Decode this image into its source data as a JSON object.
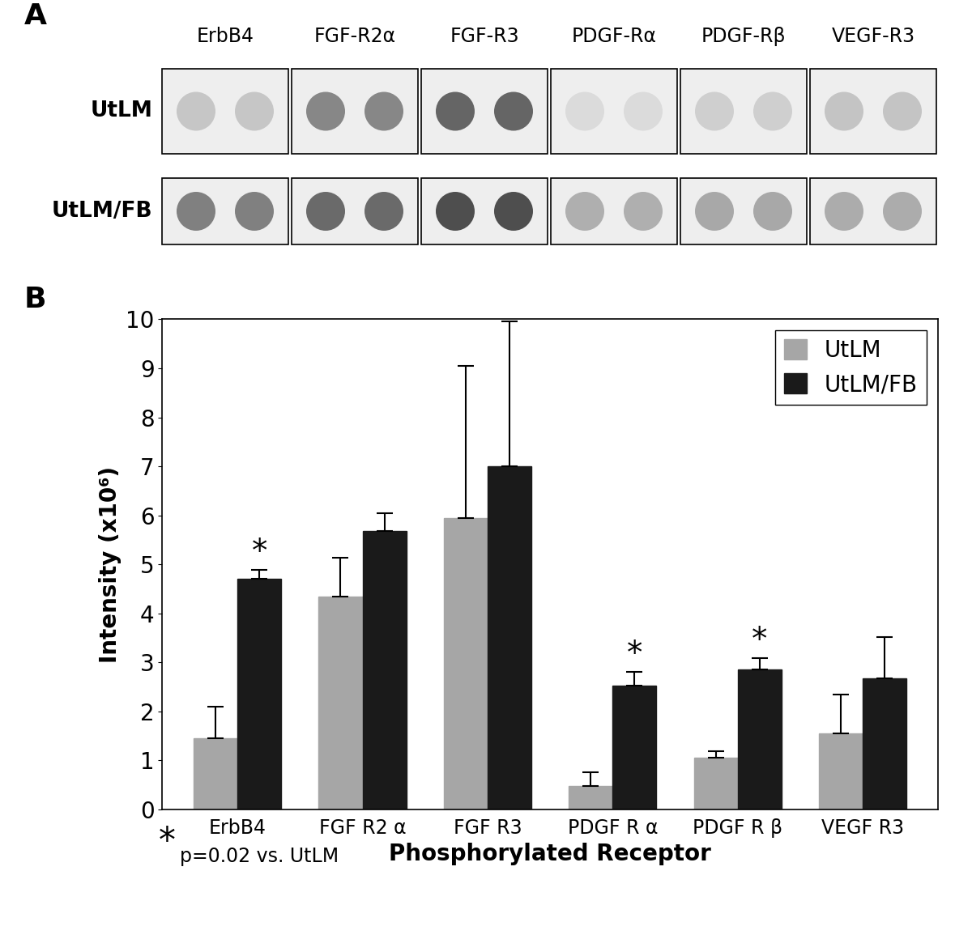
{
  "panel_a": {
    "label": "A",
    "columns": [
      "ErbB4",
      "FGF-R2α",
      "FGF-R3",
      "PDGF-Rα",
      "PDGF-Rβ",
      "VEGF-R3"
    ],
    "rows": [
      "UtLM",
      "UtLM/FB"
    ]
  },
  "chart_data": {
    "panel_label": "B",
    "type": "bar",
    "categories": [
      "ErbB4",
      "FGF R2 α",
      "FGF R3",
      "PDGF R α",
      "PDGF R β",
      "VEGF R3"
    ],
    "x_label": "Phosphorylated Receptor",
    "y_label": "Intensity (x10⁶)",
    "ylim": [
      0,
      10
    ],
    "yticks": [
      0,
      1,
      2,
      3,
      4,
      5,
      6,
      7,
      8,
      9,
      10
    ],
    "legend": "upper right",
    "series": [
      {
        "name": "UtLM",
        "color": "#a6a6a6",
        "values": [
          1.45,
          4.35,
          5.95,
          0.48,
          1.05,
          1.55
        ],
        "errors": [
          0.65,
          0.78,
          3.1,
          0.28,
          0.13,
          0.8
        ]
      },
      {
        "name": "UtLM/FB",
        "color": "#1a1a1a",
        "values": [
          4.7,
          5.68,
          7.0,
          2.52,
          2.85,
          2.67
        ],
        "errors": [
          0.18,
          0.37,
          2.95,
          0.28,
          0.23,
          0.85
        ],
        "marks": [
          "*",
          null,
          null,
          "*",
          "*",
          null
        ]
      }
    ],
    "footnote": {
      "symbol": "*",
      "text": "p=0.02 vs. UtLM"
    }
  }
}
